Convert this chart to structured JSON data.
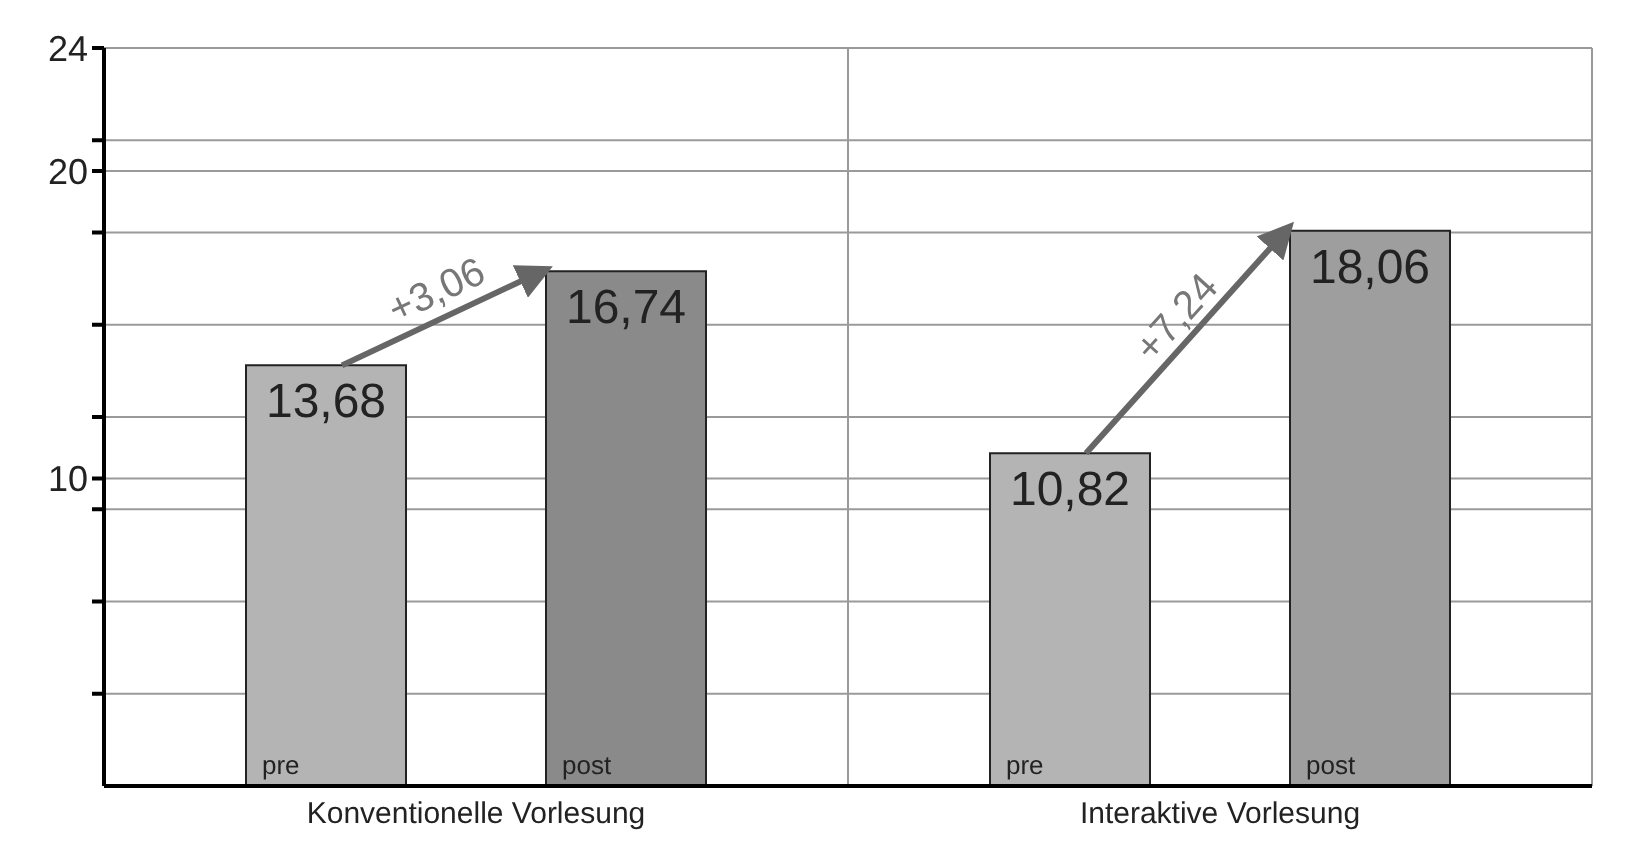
{
  "chart_data": {
    "type": "bar",
    "categories": [
      "Konventionelle Vorlesung",
      "Interaktive Vorlesung"
    ],
    "series": [
      {
        "name": "pre",
        "colors": [
          "#b4b4b4",
          "#b4b4b4"
        ],
        "values": [
          13.68,
          10.82
        ],
        "value_labels": [
          "13,68",
          "10,82"
        ]
      },
      {
        "name": "post",
        "colors": [
          "#8a8a8a",
          "#9e9e9e"
        ],
        "values": [
          16.74,
          18.06
        ],
        "value_labels": [
          "16,74",
          "18,06"
        ]
      }
    ],
    "ylim": [
      0,
      24
    ],
    "yticks": [
      {
        "value": 3,
        "label": null
      },
      {
        "value": 6,
        "label": null
      },
      {
        "value": 9,
        "label": null
      },
      10,
      {
        "value": 12,
        "label": null
      },
      {
        "value": 15,
        "label": null
      },
      {
        "value": 18,
        "label": null
      },
      20,
      {
        "value": 21,
        "label": null
      },
      24
    ],
    "grid": true,
    "legend": false,
    "annotations": [
      "+3,06",
      "+7,24"
    ]
  }
}
